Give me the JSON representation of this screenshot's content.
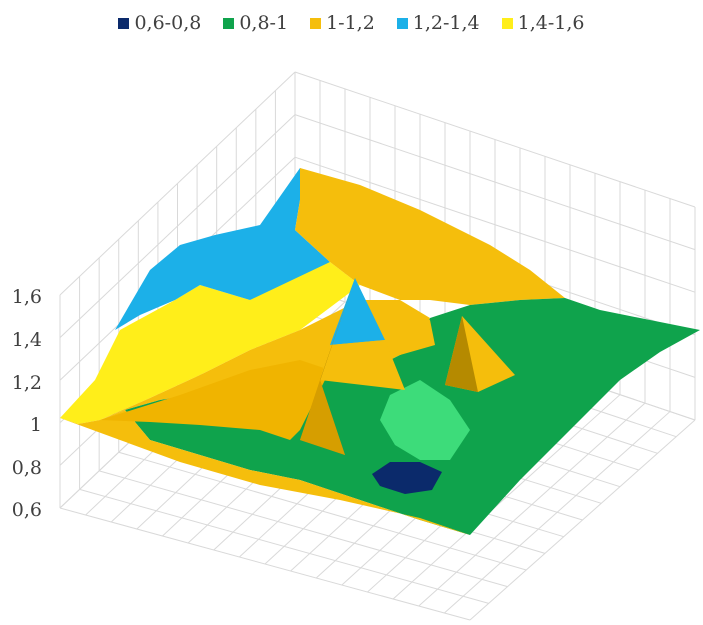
{
  "chart_data": {
    "type": "surface",
    "title": "",
    "xlabel": "",
    "ylabel": "",
    "zlabel": "",
    "legend_position": "top",
    "grid": true,
    "z_ticks": [
      "0,6",
      "0,8",
      "1",
      "1,2",
      "1,4",
      "1,6"
    ],
    "zlim": [
      0.6,
      1.6
    ],
    "bands": [
      {
        "label": "0,6-0,8",
        "range": [
          0.6,
          0.8
        ],
        "color": "#0b2a6b"
      },
      {
        "label": "0,8-1",
        "range": [
          0.8,
          1.0
        ],
        "color": "#0fa34c"
      },
      {
        "label": "1-1,2",
        "range": [
          1.0,
          1.2
        ],
        "color": "#f5be0c"
      },
      {
        "label": "1,2-1,4",
        "range": [
          1.2,
          1.4
        ],
        "color": "#1cb0e8"
      },
      {
        "label": "1,4-1,6",
        "range": [
          1.4,
          1.6
        ],
        "color": "#ffee1a"
      }
    ]
  }
}
